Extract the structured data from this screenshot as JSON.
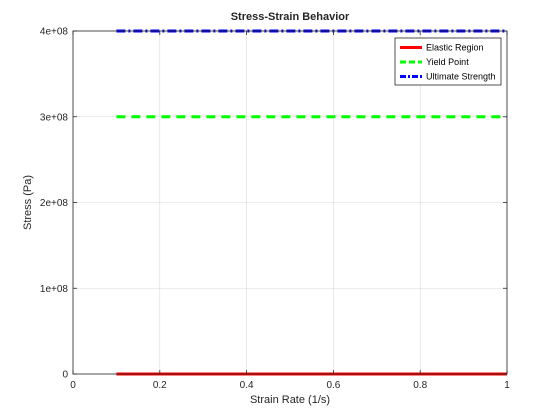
{
  "chart_data": {
    "type": "line",
    "title": "Stress-Strain Behavior",
    "xlabel": "Strain Rate (1/s)",
    "ylabel": "Stress (Pa)",
    "xlim": [
      0,
      1
    ],
    "ylim": [
      0,
      400000000
    ],
    "x_ticks": [
      0,
      0.2,
      0.4,
      0.6,
      0.8,
      1
    ],
    "x_tick_labels": [
      "0",
      "0.2",
      "0.4",
      "0.6",
      "0.8",
      "1"
    ],
    "y_ticks": [
      0,
      100000000,
      200000000,
      300000000,
      400000000
    ],
    "y_tick_labels": [
      "0",
      "1e+08",
      "2e+08",
      "3e+08",
      "4e+08"
    ],
    "grid": true,
    "legend_position": "top-right",
    "series": [
      {
        "name": "Elastic Region",
        "color": "#ff0000",
        "style": "solid",
        "x": [
          0.1,
          1.0
        ],
        "y": [
          0,
          0
        ]
      },
      {
        "name": "Yield Point",
        "color": "#00ff00",
        "style": "dashed",
        "x": [
          0.1,
          1.0
        ],
        "y": [
          300000000,
          300000000
        ]
      },
      {
        "name": "Ultimate Strength",
        "color": "#0000ff",
        "style": "dashdot",
        "x": [
          0.1,
          1.0
        ],
        "y": [
          400000000,
          400000000
        ]
      }
    ]
  }
}
